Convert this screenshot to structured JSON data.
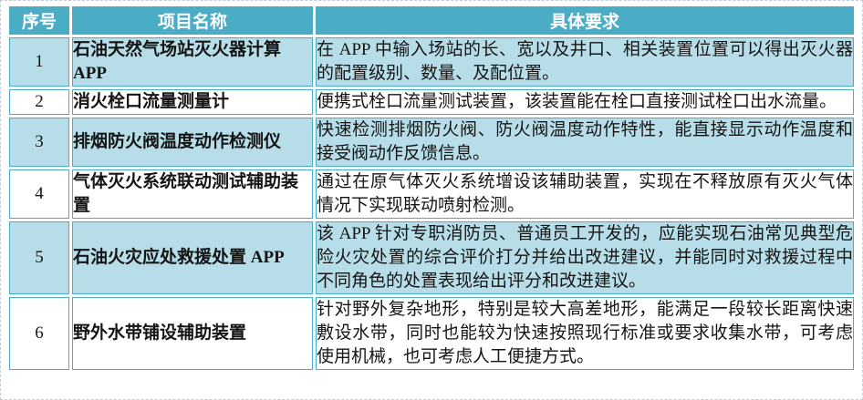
{
  "table": {
    "headers": [
      "序号",
      "项目名称",
      "具体要求"
    ],
    "rows": [
      {
        "no": "1",
        "name": "石油天然气场站灭火器计算APP",
        "req": "在 APP 中输入场站的长、宽以及井口、相关装置位置可以得出灭火器的配置级别、数量、及配位置。"
      },
      {
        "no": "2",
        "name": "消火栓口流量测量计",
        "req": "便携式栓口流量测试装置，该装置能在栓口直接测试栓口出水流量。"
      },
      {
        "no": "3",
        "name": "排烟防火阀温度动作检测仪",
        "req": "快速检测排烟防火阀、防火阀温度动作特性，能直接显示动作温度和接受阀动作反馈信息。"
      },
      {
        "no": "4",
        "name": "气体灭火系统联动测试辅助装置",
        "req": "通过在原气体灭火系统增设该辅助装置，实现在不释放原有灭火气体情况下实现联动喷射检测。"
      },
      {
        "no": "5",
        "name": "石油火灾应处救援处置 APP",
        "req": "该 APP 针对专职消防员、普通员工开发的，应能实现石油常见典型危险火灾处置的综合评价打分并给出改进建议，并能同时对救援过程中不同角色的处置表现给出评分和改进建议。"
      },
      {
        "no": "6",
        "name": "野外水带铺设辅助装置",
        "req": "针对野外复杂地形，特别是较大高差地形，能满足一段较长距离快速敷设水带，同时也能较为快速按照现行标准或要求收集水带，可考虑使用机械，也可考虑人工便捷方式。"
      }
    ]
  },
  "colors": {
    "header_bg": "#4BACC6",
    "header_text": "#FFFFFF",
    "row_alt_bg": "#B6DDE8",
    "row_bg": "#FFFFFF",
    "border_color": "#4BACC6",
    "body_text": "#151515"
  }
}
